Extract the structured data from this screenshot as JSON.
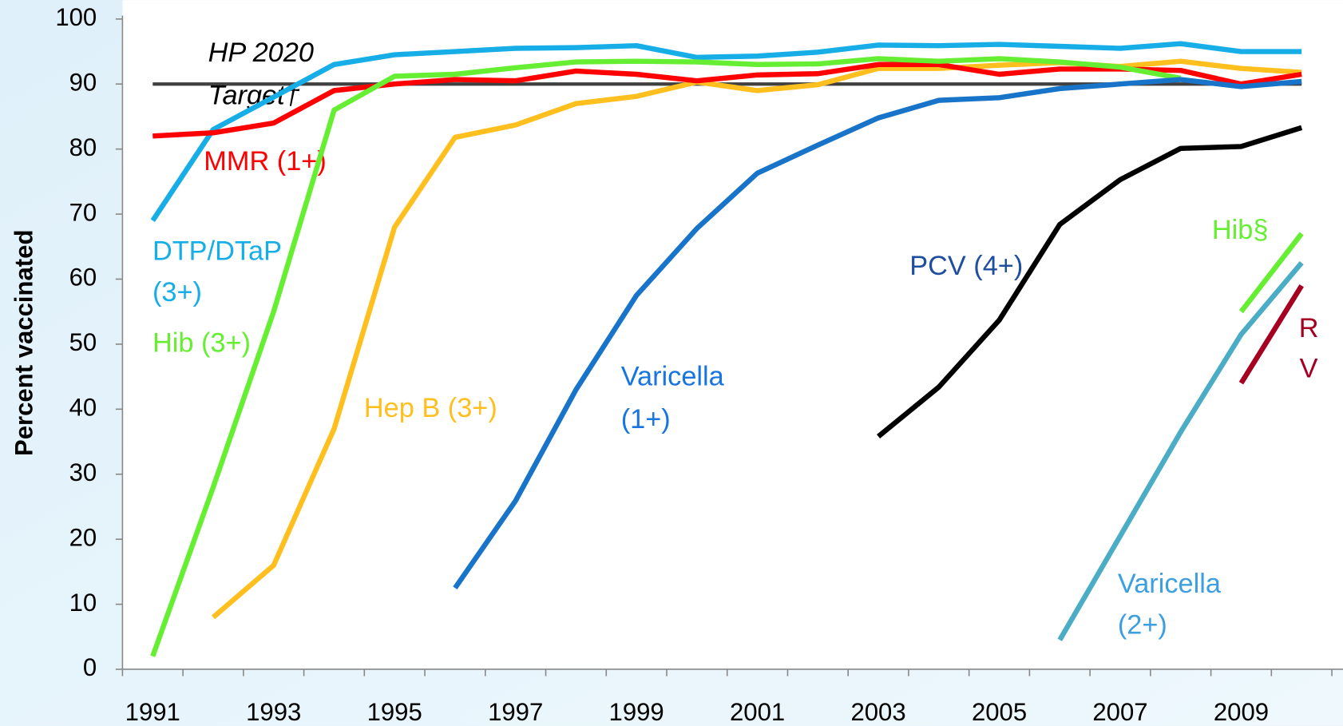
{
  "chart_data": {
    "type": "line",
    "y_label": "Percent vaccinated",
    "categories": [
      "1991",
      null,
      "1993",
      null,
      "1995",
      null,
      "1997",
      null,
      "1999",
      null,
      "2001",
      null,
      "2003",
      null,
      "2005",
      null,
      "2007",
      null,
      "2009",
      null
    ],
    "ylim": [
      0,
      100
    ],
    "yticks": [
      0,
      10,
      20,
      30,
      40,
      50,
      60,
      70,
      80,
      90,
      100
    ],
    "series": [
      {
        "name": "HP 2020\nTarget†",
        "color": "#404040",
        "label_color": "#000000",
        "values": [
          90,
          90,
          90,
          90,
          90,
          90,
          90,
          90,
          90,
          90,
          90,
          90,
          90,
          90,
          90,
          90,
          90,
          90,
          90,
          90
        ]
      },
      {
        "name": "DTP/DTaP\n(3+)",
        "color": "#17ade6",
        "label_color": "#17ade6",
        "values": [
          69,
          83,
          88,
          93,
          94.5,
          95,
          95.5,
          95.6,
          95.9,
          94.1,
          94.3,
          94.9,
          96,
          95.9,
          96.1,
          95.8,
          95.5,
          96.2,
          95,
          95
        ]
      },
      {
        "name": "Hep B (3+)",
        "color": "#ffbf1f",
        "label_color": "#ffbf1f",
        "values": [
          null,
          8,
          16,
          37,
          68,
          81.8,
          83.7,
          87,
          88.1,
          90.3,
          89,
          89.9,
          92.4,
          92.4,
          92.9,
          93.3,
          92.7,
          93.5,
          92.4,
          91.8
        ]
      },
      {
        "name": "MMR (1+)",
        "color": "#ff0000",
        "label_color": "#ff0000",
        "values": [
          82,
          82.5,
          84,
          89,
          90,
          90.7,
          90.5,
          92,
          91.5,
          90.5,
          91.4,
          91.6,
          93,
          93,
          91.5,
          92.3,
          92.3,
          92.1,
          90,
          91.5
        ]
      },
      {
        "name": "Hib (3+)",
        "color": "#66ee33",
        "label_color": "#66ee33",
        "values": [
          2,
          28,
          55,
          86,
          91.2,
          91.5,
          92.5,
          93.4,
          93.5,
          93.4,
          93,
          93.1,
          93.9,
          93.5,
          93.9,
          93.4,
          92.6,
          90.9,
          null,
          null
        ]
      },
      {
        "name": "Varicella\n(1+)",
        "color": "#1874c8",
        "label_color": "#1874e0",
        "values": [
          null,
          null,
          null,
          null,
          null,
          12.5,
          25.9,
          43,
          57.5,
          67.8,
          76.3,
          80.6,
          84.8,
          87.5,
          87.9,
          89.3,
          90,
          90.7,
          89.6,
          90.4
        ]
      },
      {
        "name": "PCV (4+)",
        "color": "#000000",
        "label_color": "#1f4e9e",
        "values": [
          null,
          null,
          null,
          null,
          null,
          null,
          null,
          null,
          null,
          null,
          null,
          null,
          35.8,
          43.4,
          53.7,
          68.4,
          75.3,
          80.1,
          80.4,
          83.3
        ]
      },
      {
        "name": "Hib§",
        "color": "#66ee33",
        "label_color": "#66ee33",
        "values": [
          null,
          null,
          null,
          null,
          null,
          null,
          null,
          null,
          null,
          null,
          null,
          null,
          null,
          null,
          null,
          null,
          null,
          null,
          55,
          67
        ]
      },
      {
        "name": "Varicella\n(2+)",
        "color": "#4bacc6",
        "label_color": "#3d9fe0",
        "values": [
          null,
          null,
          null,
          null,
          null,
          null,
          null,
          null,
          null,
          null,
          null,
          null,
          null,
          null,
          null,
          4.5,
          20.5,
          36.5,
          51.5,
          62.5
        ]
      },
      {
        "name": "R\nV",
        "color": "#a50021",
        "label_color": "#a50021",
        "values": [
          null,
          null,
          null,
          null,
          null,
          null,
          null,
          null,
          null,
          null,
          null,
          null,
          null,
          null,
          null,
          null,
          null,
          null,
          44,
          59
        ]
      }
    ]
  }
}
